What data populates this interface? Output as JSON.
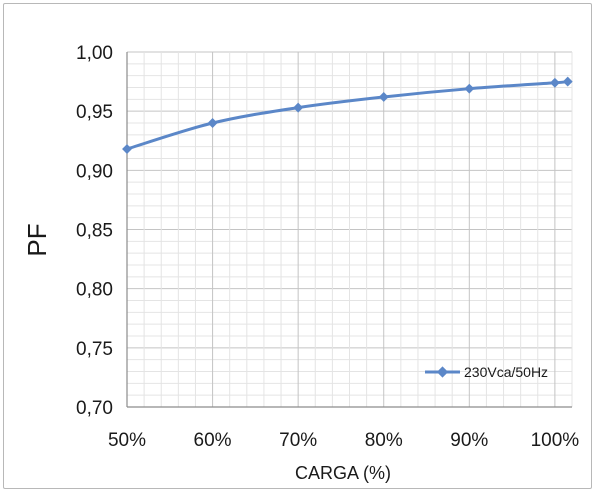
{
  "chart_data": {
    "type": "line",
    "x_categories": [
      "50%",
      "60%",
      "70%",
      "80%",
      "90%",
      "100%"
    ],
    "x_values": [
      50,
      60,
      70,
      80,
      90,
      100
    ],
    "xlim": [
      50,
      102
    ],
    "ylim": [
      0.7,
      1.0
    ],
    "y_ticks": [
      0.7,
      0.75,
      0.8,
      0.85,
      0.9,
      0.95,
      1.0
    ],
    "y_tick_labels": [
      "0,70",
      "0,75",
      "0,80",
      "0,85",
      "0,90",
      "0,95",
      "1,00"
    ],
    "xlabel": "CARGA (%)",
    "ylabel": "PF",
    "grid": true,
    "legend_position": "bottom-right",
    "series": [
      {
        "name": "230Vca/50Hz",
        "color": "#5b87c8",
        "marker": "diamond",
        "x": [
          50,
          60,
          70,
          80,
          90,
          100,
          101.5
        ],
        "y": [
          0.918,
          0.94,
          0.953,
          0.962,
          0.969,
          0.974,
          0.975
        ]
      }
    ]
  }
}
